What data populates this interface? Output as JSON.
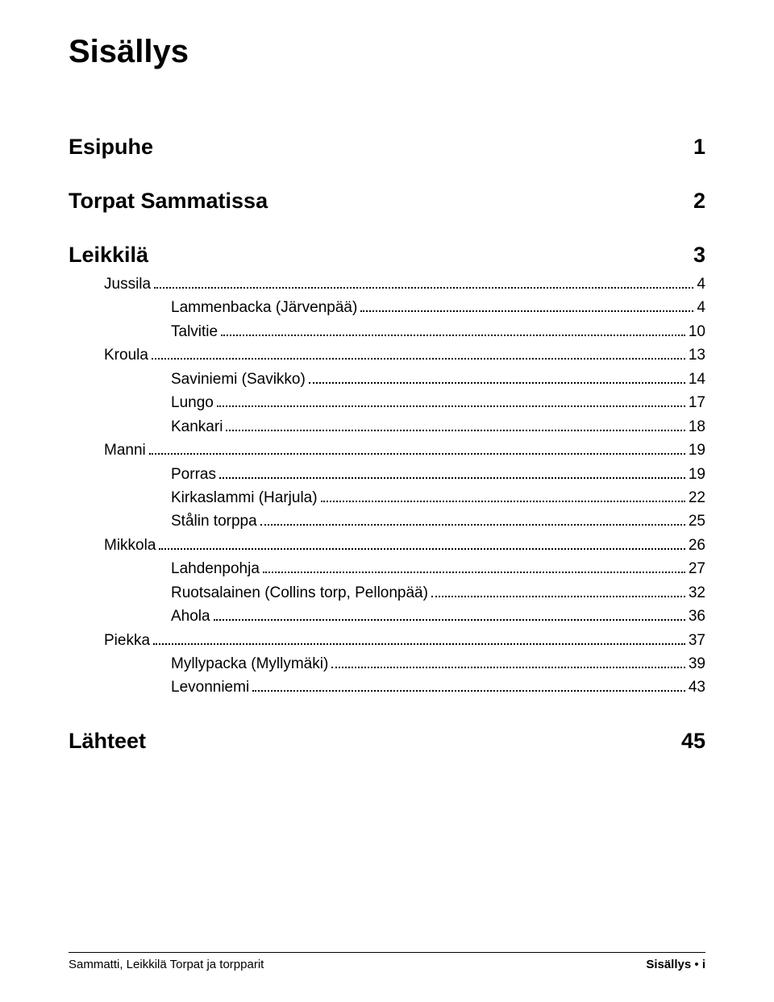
{
  "title": "Sisällys",
  "sections": [
    {
      "label": "Esipuhe",
      "page": "1"
    },
    {
      "label": "Torpat Sammatissa",
      "page": "2"
    },
    {
      "label": "Leikkilä",
      "page": "3"
    }
  ],
  "toc_entries": [
    {
      "level": 1,
      "label": "Jussila",
      "page": "4"
    },
    {
      "level": 2,
      "label": "Lammenbacka (Järvenpää)",
      "page": "4"
    },
    {
      "level": 2,
      "label": "Talvitie",
      "page": "10"
    },
    {
      "level": 1,
      "label": "Kroula",
      "page": "13"
    },
    {
      "level": 2,
      "label": "Saviniemi (Savikko)",
      "page": "14"
    },
    {
      "level": 2,
      "label": "Lungo",
      "page": "17"
    },
    {
      "level": 2,
      "label": "Kankari",
      "page": "18"
    },
    {
      "level": 1,
      "label": "Manni",
      "page": "19"
    },
    {
      "level": 2,
      "label": "Porras",
      "page": "19"
    },
    {
      "level": 2,
      "label": "Kirkaslammi (Harjula)",
      "page": "22"
    },
    {
      "level": 2,
      "label": "Stålin torppa",
      "page": "25"
    },
    {
      "level": 1,
      "label": "Mikkola",
      "page": "26"
    },
    {
      "level": 2,
      "label": "Lahdenpohja",
      "page": "27"
    },
    {
      "level": 2,
      "label": "Ruotsalainen (Collins torp, Pellonpää)",
      "page": "32"
    },
    {
      "level": 2,
      "label": "Ahola",
      "page": "36"
    },
    {
      "level": 1,
      "label": "Piekka",
      "page": "37"
    },
    {
      "level": 2,
      "label": "Myllypacka (Myllymäki)",
      "page": "39"
    },
    {
      "level": 2,
      "label": "Levonniemi",
      "page": "43"
    }
  ],
  "final_section": {
    "label": "Lähteet",
    "page": "45"
  },
  "footer": {
    "left": "Sammatti, Leikkilä Torpat ja torpparit",
    "right_label": "Sisällys",
    "right_bullet": "•",
    "right_page": "i"
  },
  "style": {
    "background_color": "#ffffff",
    "text_color": "#000000",
    "title_fontsize": 40,
    "heading_fontsize": 27,
    "body_fontsize": 19,
    "footer_fontsize": 15
  }
}
